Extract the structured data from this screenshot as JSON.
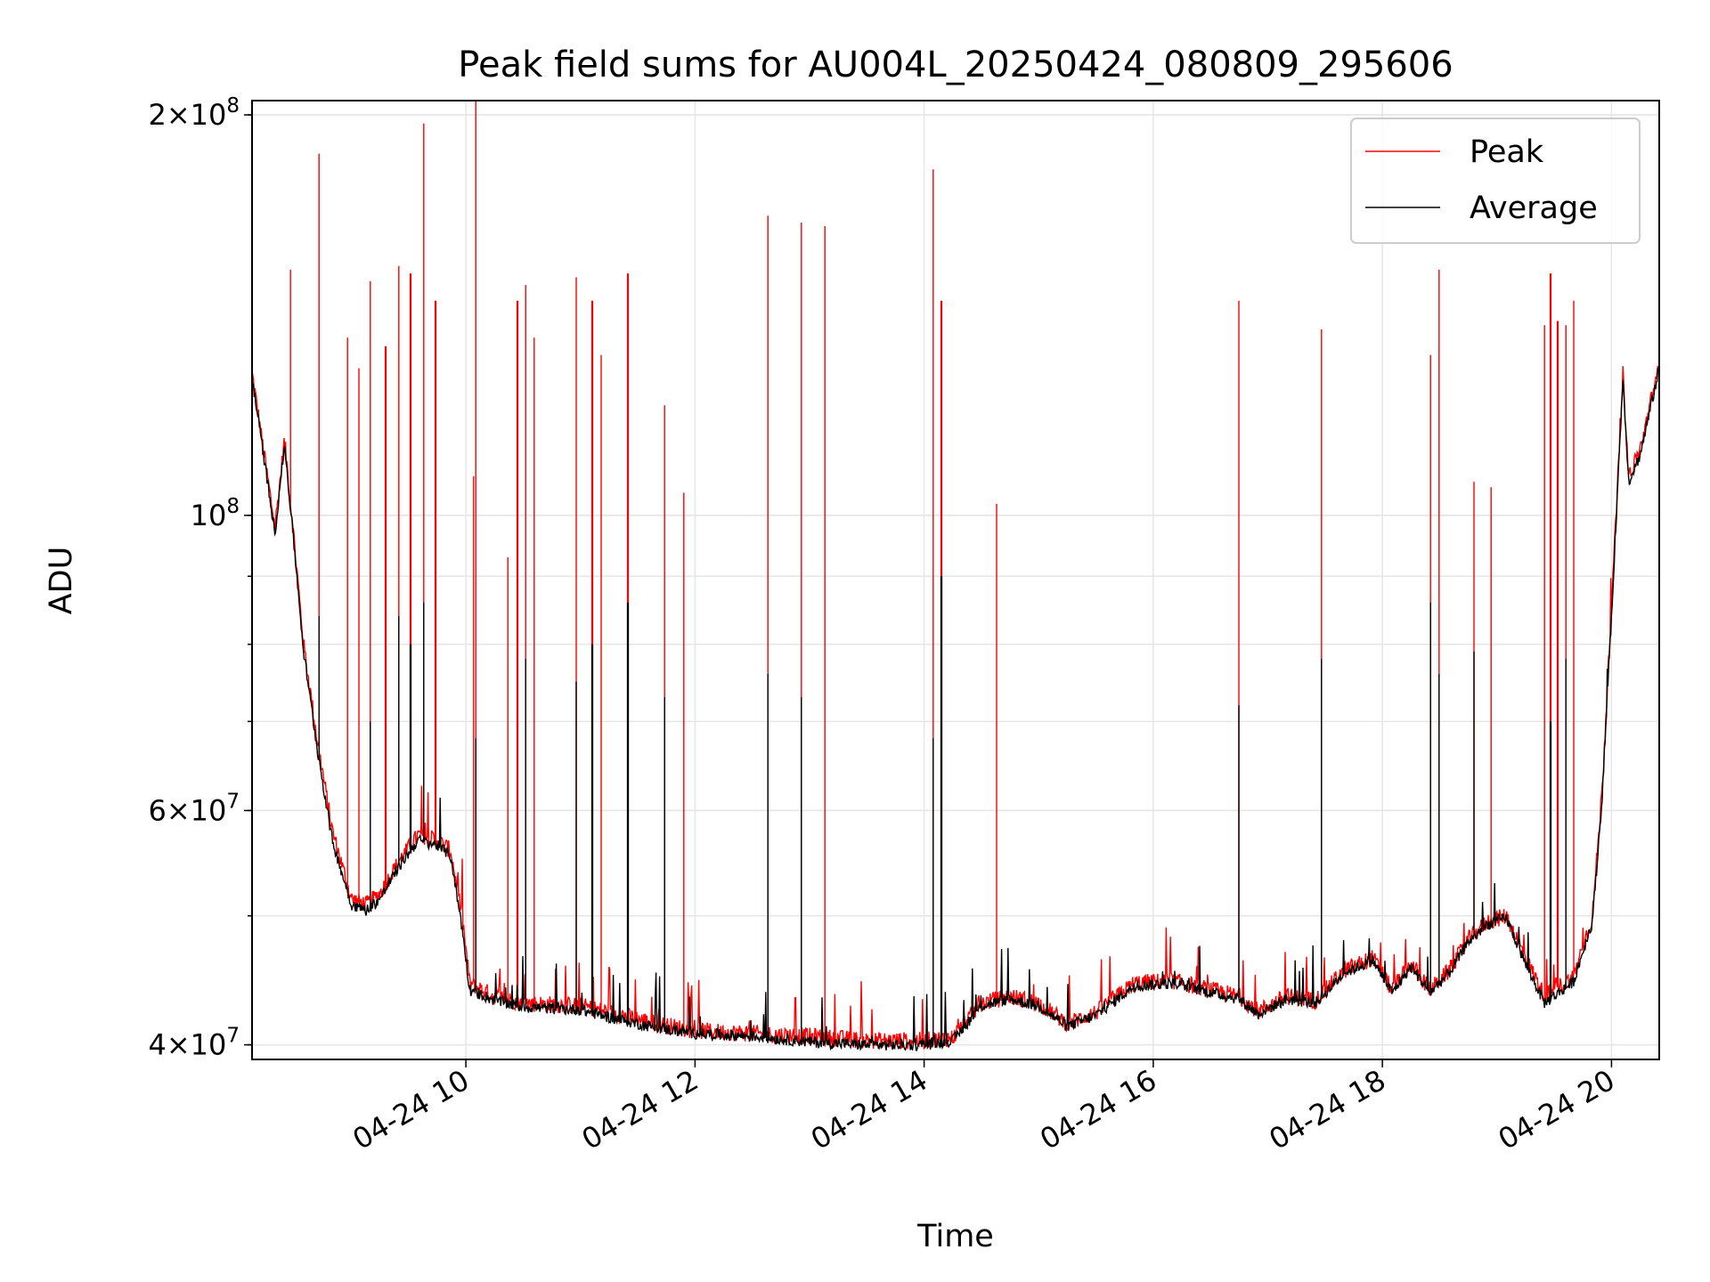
{
  "chart_data": {
    "type": "line",
    "title": "Peak field sums for AU004L_20250424_080809_295606",
    "xlabel": "Time",
    "ylabel": "ADU",
    "y_scale": "log",
    "ylim": [
      39000000,
      205000000
    ],
    "xlim": [
      "2025-04-24 08:08",
      "2025-04-24 20:25"
    ],
    "grid": true,
    "legend_position": "top-right",
    "x_ticks": [
      {
        "value": "2025-04-24 10:00",
        "label": "04-24 10"
      },
      {
        "value": "2025-04-24 12:00",
        "label": "04-24 12"
      },
      {
        "value": "2025-04-24 14:00",
        "label": "04-24 14"
      },
      {
        "value": "2025-04-24 16:00",
        "label": "04-24 16"
      },
      {
        "value": "2025-04-24 18:00",
        "label": "04-24 18"
      },
      {
        "value": "2025-04-24 20:00",
        "label": "04-24 20"
      }
    ],
    "y_ticks": [
      {
        "value": 40000000,
        "mantissa": "4",
        "exponent": "7"
      },
      {
        "value": 60000000,
        "mantissa": "6",
        "exponent": "7"
      },
      {
        "value": 100000000,
        "mantissa": "",
        "exponent": "8"
      },
      {
        "value": 200000000,
        "mantissa": "2",
        "exponent": "8"
      }
    ],
    "y_times": "×",
    "y_base": "10",
    "series": [
      {
        "name": "Peak",
        "color": "#ff0000",
        "baseline": [
          [
            "2025-04-24 08:08",
            128000000
          ],
          [
            "2025-04-24 08:14",
            112000000
          ],
          [
            "2025-04-24 08:20",
            98000000
          ],
          [
            "2025-04-24 08:25",
            114000000
          ],
          [
            "2025-04-24 08:30",
            96000000
          ],
          [
            "2025-04-24 08:35",
            80000000
          ],
          [
            "2025-04-24 08:42",
            68000000
          ],
          [
            "2025-04-24 08:50",
            58000000
          ],
          [
            "2025-04-24 09:00",
            51500000
          ],
          [
            "2025-04-24 09:08",
            51000000
          ],
          [
            "2025-04-24 09:15",
            52000000
          ],
          [
            "2025-04-24 09:25",
            55000000
          ],
          [
            "2025-04-24 09:35",
            57500000
          ],
          [
            "2025-04-24 09:45",
            57000000
          ],
          [
            "2025-04-24 09:52",
            56000000
          ],
          [
            "2025-04-24 09:58",
            50000000
          ],
          [
            "2025-04-24 10:02",
            44500000
          ],
          [
            "2025-04-24 10:15",
            43500000
          ],
          [
            "2025-04-24 10:30",
            43000000
          ],
          [
            "2025-04-24 11:00",
            42800000
          ],
          [
            "2025-04-24 11:20",
            42200000
          ],
          [
            "2025-04-24 11:40",
            41500000
          ],
          [
            "2025-04-24 12:00",
            41000000
          ],
          [
            "2025-04-24 12:30",
            40800000
          ],
          [
            "2025-04-24 13:00",
            40600000
          ],
          [
            "2025-04-24 13:30",
            40300000
          ],
          [
            "2025-04-24 14:00",
            40300000
          ],
          [
            "2025-04-24 14:15",
            40500000
          ],
          [
            "2025-04-24 14:30",
            43000000
          ],
          [
            "2025-04-24 14:45",
            43500000
          ],
          [
            "2025-04-24 15:00",
            43000000
          ],
          [
            "2025-04-24 15:15",
            41500000
          ],
          [
            "2025-04-24 15:30",
            42300000
          ],
          [
            "2025-04-24 15:50",
            44500000
          ],
          [
            "2025-04-24 16:10",
            44700000
          ],
          [
            "2025-04-24 16:30",
            44000000
          ],
          [
            "2025-04-24 16:45",
            43500000
          ],
          [
            "2025-04-24 16:55",
            42400000
          ],
          [
            "2025-04-24 17:10",
            43500000
          ],
          [
            "2025-04-24 17:25",
            43200000
          ],
          [
            "2025-04-24 17:40",
            45500000
          ],
          [
            "2025-04-24 17:55",
            46500000
          ],
          [
            "2025-04-24 18:05",
            44000000
          ],
          [
            "2025-04-24 18:15",
            46000000
          ],
          [
            "2025-04-24 18:25",
            44000000
          ],
          [
            "2025-04-24 18:35",
            45500000
          ],
          [
            "2025-04-24 18:45",
            48000000
          ],
          [
            "2025-04-24 18:55",
            49500000
          ],
          [
            "2025-04-24 19:05",
            50000000
          ],
          [
            "2025-04-24 19:15",
            46500000
          ],
          [
            "2025-04-24 19:25",
            43500000
          ],
          [
            "2025-04-24 19:40",
            45000000
          ],
          [
            "2025-04-24 19:50",
            50000000
          ],
          [
            "2025-04-24 19:55",
            62000000
          ],
          [
            "2025-04-24 20:00",
            85000000
          ],
          [
            "2025-04-24 20:06",
            128000000
          ],
          [
            "2025-04-24 20:09",
            107000000
          ],
          [
            "2025-04-24 20:15",
            112000000
          ],
          [
            "2025-04-24 20:25",
            130000000
          ]
        ],
        "spikes": [
          [
            "2025-04-24 08:28",
            153000000
          ],
          [
            "2025-04-24 08:43",
            187000000
          ],
          [
            "2025-04-24 08:58",
            136000000
          ],
          [
            "2025-04-24 09:04",
            129000000
          ],
          [
            "2025-04-24 09:10",
            150000000
          ],
          [
            "2025-04-24 09:18",
            134000000
          ],
          [
            "2025-04-24 09:25",
            154000000
          ],
          [
            "2025-04-24 09:31",
            152000000
          ],
          [
            "2025-04-24 09:38",
            197000000
          ],
          [
            "2025-04-24 09:44",
            145000000
          ],
          [
            "2025-04-24 10:04",
            107000000
          ],
          [
            "2025-04-24 10:05",
            209000000
          ],
          [
            "2025-04-24 10:22",
            93000000
          ],
          [
            "2025-04-24 10:27",
            145000000
          ],
          [
            "2025-04-24 10:31",
            149000000
          ],
          [
            "2025-04-24 10:36",
            136000000
          ],
          [
            "2025-04-24 10:58",
            151000000
          ],
          [
            "2025-04-24 11:06",
            145000000
          ],
          [
            "2025-04-24 11:11",
            132000000
          ],
          [
            "2025-04-24 11:25",
            152000000
          ],
          [
            "2025-04-24 11:44",
            121000000
          ],
          [
            "2025-04-24 11:54",
            104000000
          ],
          [
            "2025-04-24 12:38",
            168000000
          ],
          [
            "2025-04-24 12:56",
            166000000
          ],
          [
            "2025-04-24 13:08",
            165000000
          ],
          [
            "2025-04-24 14:05",
            182000000
          ],
          [
            "2025-04-24 14:09",
            145000000
          ],
          [
            "2025-04-24 14:38",
            102000000
          ],
          [
            "2025-04-24 16:45",
            145000000
          ],
          [
            "2025-04-24 17:28",
            138000000
          ],
          [
            "2025-04-24 18:25",
            132000000
          ],
          [
            "2025-04-24 18:30",
            153000000
          ],
          [
            "2025-04-24 18:48",
            106000000
          ],
          [
            "2025-04-24 18:57",
            105000000
          ],
          [
            "2025-04-24 19:25",
            139000000
          ],
          [
            "2025-04-24 19:28",
            152000000
          ],
          [
            "2025-04-24 19:32",
            140000000
          ],
          [
            "2025-04-24 19:36",
            139000000
          ],
          [
            "2025-04-24 19:40",
            145000000
          ]
        ]
      },
      {
        "name": "Average",
        "color": "#000000",
        "baseline": [
          [
            "2025-04-24 08:08",
            127000000
          ],
          [
            "2025-04-24 08:14",
            111000000
          ],
          [
            "2025-04-24 08:20",
            97000000
          ],
          [
            "2025-04-24 08:25",
            113000000
          ],
          [
            "2025-04-24 08:30",
            95000000
          ],
          [
            "2025-04-24 08:35",
            79000000
          ],
          [
            "2025-04-24 08:42",
            67000000
          ],
          [
            "2025-04-24 08:50",
            57000000
          ],
          [
            "2025-04-24 09:00",
            51000000
          ],
          [
            "2025-04-24 09:08",
            50500000
          ],
          [
            "2025-04-24 09:15",
            51500000
          ],
          [
            "2025-04-24 09:25",
            54500000
          ],
          [
            "2025-04-24 09:35",
            57000000
          ],
          [
            "2025-04-24 09:45",
            56500000
          ],
          [
            "2025-04-24 09:52",
            55500000
          ],
          [
            "2025-04-24 09:58",
            49000000
          ],
          [
            "2025-04-24 10:02",
            44000000
          ],
          [
            "2025-04-24 10:15",
            43200000
          ],
          [
            "2025-04-24 10:30",
            42700000
          ],
          [
            "2025-04-24 11:00",
            42500000
          ],
          [
            "2025-04-24 11:20",
            41800000
          ],
          [
            "2025-04-24 11:40",
            41200000
          ],
          [
            "2025-04-24 12:00",
            40800000
          ],
          [
            "2025-04-24 12:30",
            40600000
          ],
          [
            "2025-04-24 13:00",
            40200000
          ],
          [
            "2025-04-24 13:30",
            40000000
          ],
          [
            "2025-04-24 14:00",
            40000000
          ],
          [
            "2025-04-24 14:15",
            40300000
          ],
          [
            "2025-04-24 14:30",
            42800000
          ],
          [
            "2025-04-24 14:45",
            43300000
          ],
          [
            "2025-04-24 15:00",
            42800000
          ],
          [
            "2025-04-24 15:15",
            41300000
          ],
          [
            "2025-04-24 15:30",
            42100000
          ],
          [
            "2025-04-24 15:50",
            44300000
          ],
          [
            "2025-04-24 16:10",
            44500000
          ],
          [
            "2025-04-24 16:30",
            43800000
          ],
          [
            "2025-04-24 16:45",
            43300000
          ],
          [
            "2025-04-24 16:55",
            42200000
          ],
          [
            "2025-04-24 17:10",
            43300000
          ],
          [
            "2025-04-24 17:25",
            43000000
          ],
          [
            "2025-04-24 17:40",
            45300000
          ],
          [
            "2025-04-24 17:55",
            46300000
          ],
          [
            "2025-04-24 18:05",
            43800000
          ],
          [
            "2025-04-24 18:15",
            45800000
          ],
          [
            "2025-04-24 18:25",
            43800000
          ],
          [
            "2025-04-24 18:35",
            45300000
          ],
          [
            "2025-04-24 18:45",
            47800000
          ],
          [
            "2025-04-24 18:55",
            49300000
          ],
          [
            "2025-04-24 19:05",
            49800000
          ],
          [
            "2025-04-24 19:15",
            46000000
          ],
          [
            "2025-04-24 19:25",
            43000000
          ],
          [
            "2025-04-24 19:40",
            44600000
          ],
          [
            "2025-04-24 19:50",
            49500000
          ],
          [
            "2025-04-24 19:55",
            61000000
          ],
          [
            "2025-04-24 20:00",
            84000000
          ],
          [
            "2025-04-24 20:06",
            127000000
          ],
          [
            "2025-04-24 20:09",
            106000000
          ],
          [
            "2025-04-24 20:15",
            111000000
          ],
          [
            "2025-04-24 20:25",
            129000000
          ]
        ],
        "spikes": [
          [
            "2025-04-24 08:43",
            84000000
          ],
          [
            "2025-04-24 09:10",
            70000000
          ],
          [
            "2025-04-24 09:25",
            84000000
          ],
          [
            "2025-04-24 09:31",
            80000000
          ],
          [
            "2025-04-24 09:38",
            86000000
          ],
          [
            "2025-04-24 10:05",
            68000000
          ],
          [
            "2025-04-24 10:31",
            78000000
          ],
          [
            "2025-04-24 10:58",
            75000000
          ],
          [
            "2025-04-24 11:06",
            80000000
          ],
          [
            "2025-04-24 11:25",
            86000000
          ],
          [
            "2025-04-24 11:44",
            73000000
          ],
          [
            "2025-04-24 12:38",
            76000000
          ],
          [
            "2025-04-24 12:56",
            73000000
          ],
          [
            "2025-04-24 14:05",
            68000000
          ],
          [
            "2025-04-24 14:09",
            90000000
          ],
          [
            "2025-04-24 16:45",
            72000000
          ],
          [
            "2025-04-24 17:28",
            78000000
          ],
          [
            "2025-04-24 18:25",
            86000000
          ],
          [
            "2025-04-24 18:30",
            76000000
          ],
          [
            "2025-04-24 18:48",
            79000000
          ],
          [
            "2025-04-24 19:28",
            70000000
          ],
          [
            "2025-04-24 19:36",
            78000000
          ]
        ]
      }
    ]
  }
}
